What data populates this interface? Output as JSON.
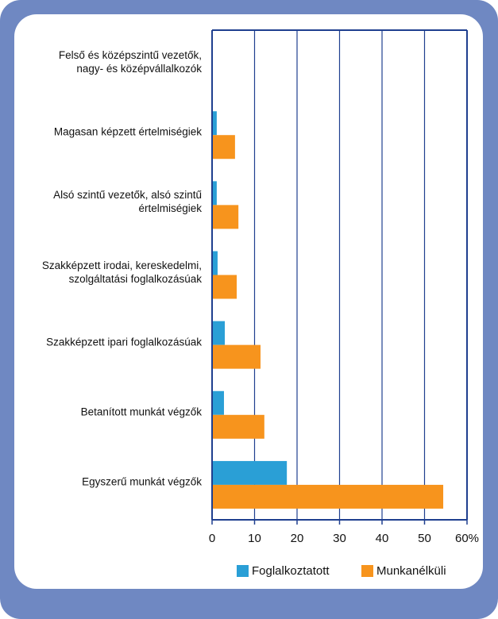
{
  "chart_data": {
    "type": "bar",
    "orientation": "horizontal",
    "categories": [
      "Felső és középszintű vezetők,\nnagy- és középvállalkozók",
      "Magasan képzett értelmiségiek",
      "Alsó szintű vezetők, alsó szintű\nértelmiségiek",
      "Szakképzett irodai, kereskedelmi,\nszolgáltatási foglalkozásúak",
      "Szakképzett ipari foglalkozásúak",
      "Betanított munkát végzők",
      "Egyszerű munkát végzők"
    ],
    "series": [
      {
        "name": "Foglalkoztatott",
        "color": "#2a9fd6",
        "values": [
          0,
          1.1,
          1.1,
          1.3,
          3.0,
          2.8,
          17.6
        ]
      },
      {
        "name": "Munkanélküli",
        "color": "#f7941d",
        "values": [
          0,
          5.4,
          6.2,
          5.8,
          11.4,
          12.3,
          54.4
        ]
      }
    ],
    "xlim": [
      0,
      60
    ],
    "xticks": [
      0,
      10,
      20,
      30,
      40,
      50,
      {
        "value": 60,
        "label": "60%"
      }
    ],
    "grid": true
  }
}
